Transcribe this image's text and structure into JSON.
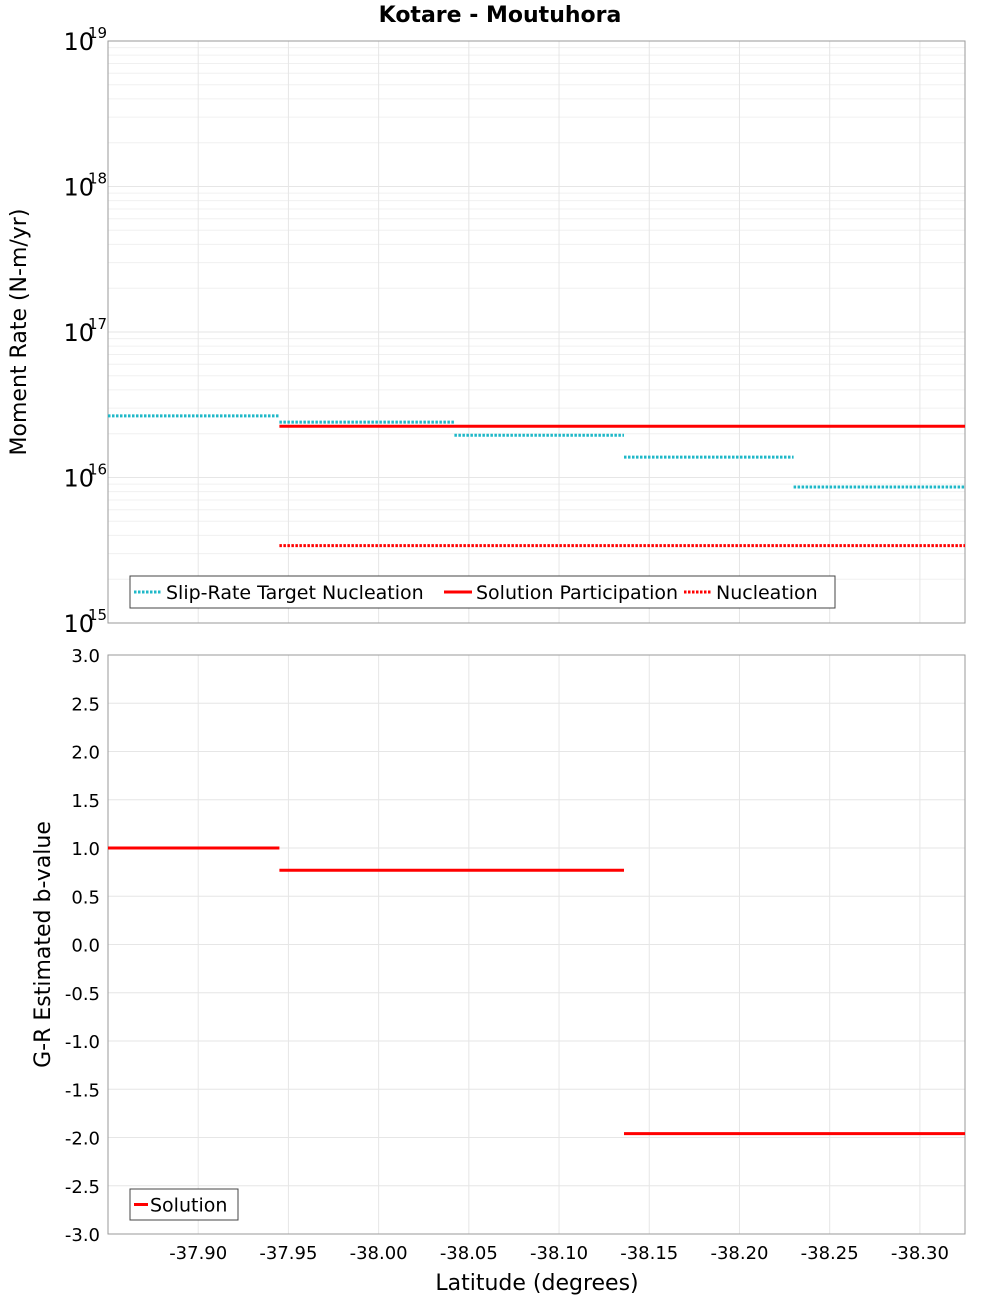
{
  "title": "Kotare - Moutuhora",
  "xlabel": "Latitude (degrees)",
  "colors": {
    "cyan": "#1fb8c8",
    "red": "#ff0000",
    "grid": "#e6e6e6",
    "frame": "#9a9a9a"
  },
  "chart_data": [
    {
      "type": "line",
      "panel": "top",
      "ylabel": "Moment Rate (N-m/yr)",
      "yscale": "log",
      "ylim": [
        1000000000000000.0,
        1e+19
      ],
      "xlim": [
        -37.85,
        -38.325
      ],
      "x_ticks": [
        "-37.90",
        "-37.95",
        "-38.00",
        "-38.05",
        "-38.10",
        "-38.15",
        "-38.20",
        "-38.25",
        "-38.30"
      ],
      "x_tick_values": [
        -37.9,
        -37.95,
        -38.0,
        -38.05,
        -38.1,
        -38.15,
        -38.2,
        -38.25,
        -38.3
      ],
      "y_ticks": [
        {
          "value": 1000000000000000.0,
          "base": "10",
          "exp": "15"
        },
        {
          "value": 1e+16,
          "base": "10",
          "exp": "16"
        },
        {
          "value": 1e+17,
          "base": "10",
          "exp": "17"
        },
        {
          "value": 1e+18,
          "base": "10",
          "exp": "18"
        },
        {
          "value": 1e+19,
          "base": "10",
          "exp": "19"
        }
      ],
      "legend": "bottom-left",
      "series": [
        {
          "name": "Slip-Rate Target Nucleation",
          "style": "dotted",
          "color": "#1fb8c8",
          "segments": [
            {
              "x": [
                -37.85,
                -37.945
              ],
              "y": 2.65e+16
            },
            {
              "x": [
                -37.945,
                -38.042
              ],
              "y": 2.4e+16
            },
            {
              "x": [
                -38.042,
                -38.136
              ],
              "y": 1.95e+16
            },
            {
              "x": [
                -38.136,
                -38.23
              ],
              "y": 1.38e+16
            },
            {
              "x": [
                -38.23,
                -38.325
              ],
              "y": 8600000000000000.0
            }
          ]
        },
        {
          "name": "Solution Participation",
          "style": "solid",
          "color": "#ff0000",
          "segments": [
            {
              "x": [
                -37.945,
                -38.325
              ],
              "y": 2.25e+16
            }
          ]
        },
        {
          "name": "Nucleation",
          "style": "dotted",
          "color": "#ff0000",
          "segments": [
            {
              "x": [
                -37.945,
                -38.325
              ],
              "y": 3400000000000000.0
            }
          ]
        }
      ]
    },
    {
      "type": "line",
      "panel": "bottom",
      "ylabel": "G-R Estimated b-value",
      "yscale": "linear",
      "ylim": [
        -3.0,
        3.0
      ],
      "xlim": [
        -37.85,
        -38.325
      ],
      "y_ticks": [
        "-3.0",
        "-2.5",
        "-2.0",
        "-1.5",
        "-1.0",
        "-0.5",
        "0.0",
        "0.5",
        "1.0",
        "1.5",
        "2.0",
        "2.5",
        "3.0"
      ],
      "y_tick_values": [
        -3.0,
        -2.5,
        -2.0,
        -1.5,
        -1.0,
        -0.5,
        0.0,
        0.5,
        1.0,
        1.5,
        2.0,
        2.5,
        3.0
      ],
      "legend": "bottom-left",
      "series": [
        {
          "name": "Solution",
          "style": "solid",
          "color": "#ff0000",
          "segments": [
            {
              "x": [
                -37.85,
                -37.945
              ],
              "y": 1.0
            },
            {
              "x": [
                -37.945,
                -38.136
              ],
              "y": 0.77
            },
            {
              "x": [
                -38.136,
                -38.325
              ],
              "y": -1.96
            }
          ]
        }
      ]
    }
  ]
}
